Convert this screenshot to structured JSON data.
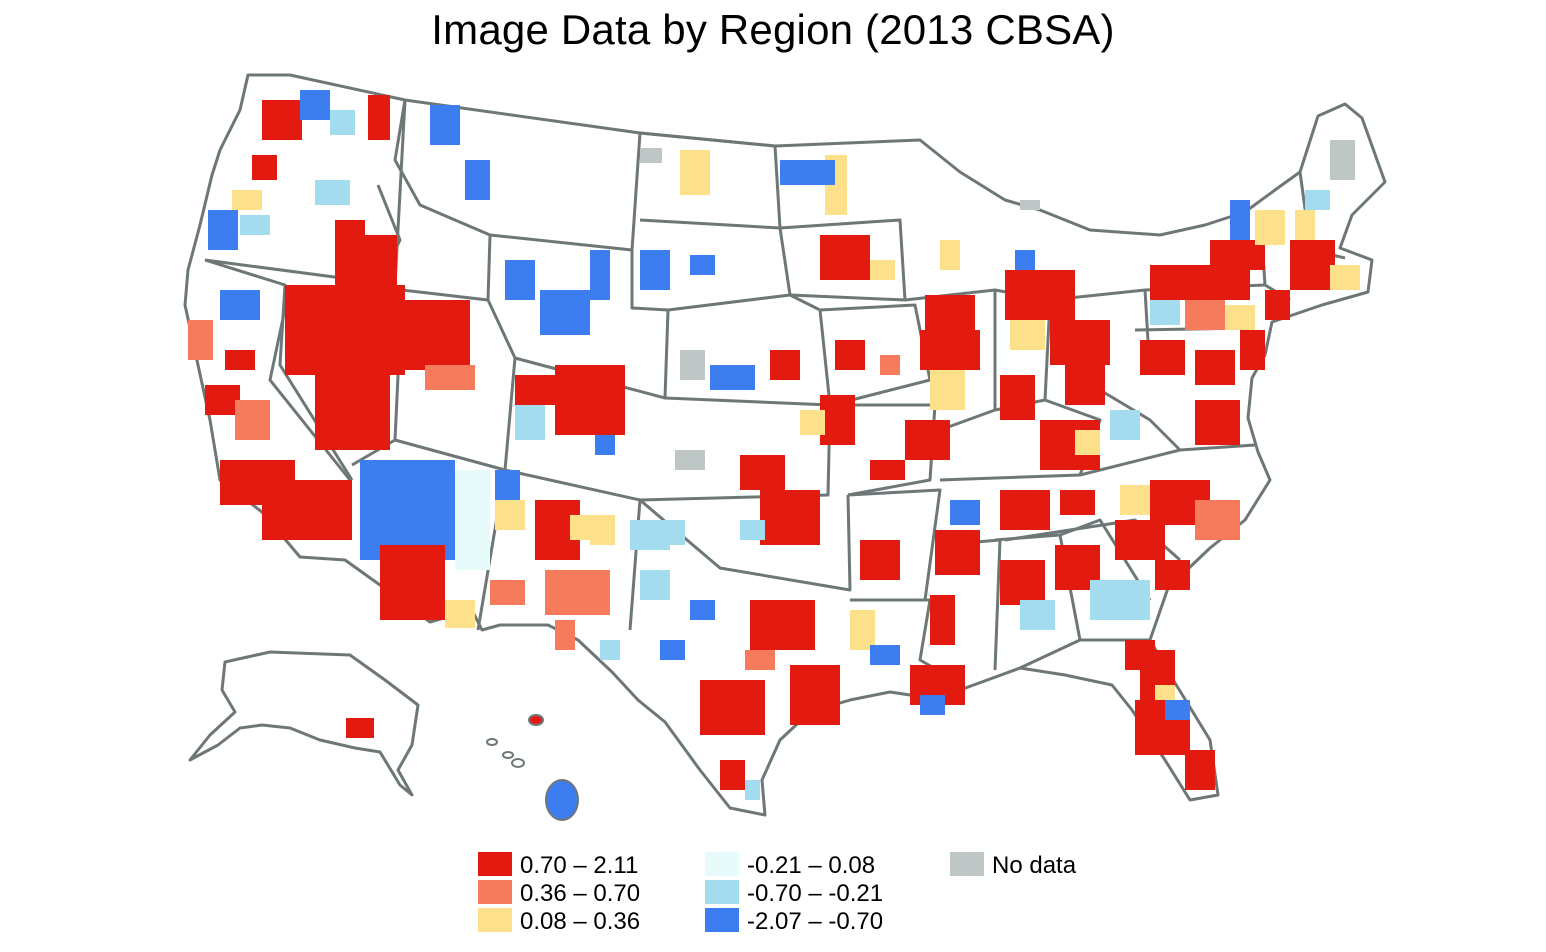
{
  "title": "Image Data by Region (2013 CBSA)",
  "colors": {
    "class_1": "#e21a0f",
    "class_2": "#f67a5c",
    "class_3": "#fde08a",
    "class_4": "#e8fbfb",
    "class_5": "#a2dcee",
    "class_6": "#3c7df0",
    "no_data": "#bfc6c6",
    "border": "#6e7777",
    "land": "#ffffff"
  },
  "legend": [
    {
      "label": "0.70 – 2.11",
      "color": "#e21a0f"
    },
    {
      "label": "0.36 – 0.70",
      "color": "#f67a5c"
    },
    {
      "label": "0.08 – 0.36",
      "color": "#fde08a"
    },
    {
      "label": "-0.21 – 0.08",
      "color": "#e8fbfb"
    },
    {
      "label": "-0.70 – -0.21",
      "color": "#a2dcee"
    },
    {
      "label": "-2.07 – -0.70",
      "color": "#3c7df0"
    },
    {
      "label": "No data",
      "color": "#bfc6c6"
    }
  ]
}
